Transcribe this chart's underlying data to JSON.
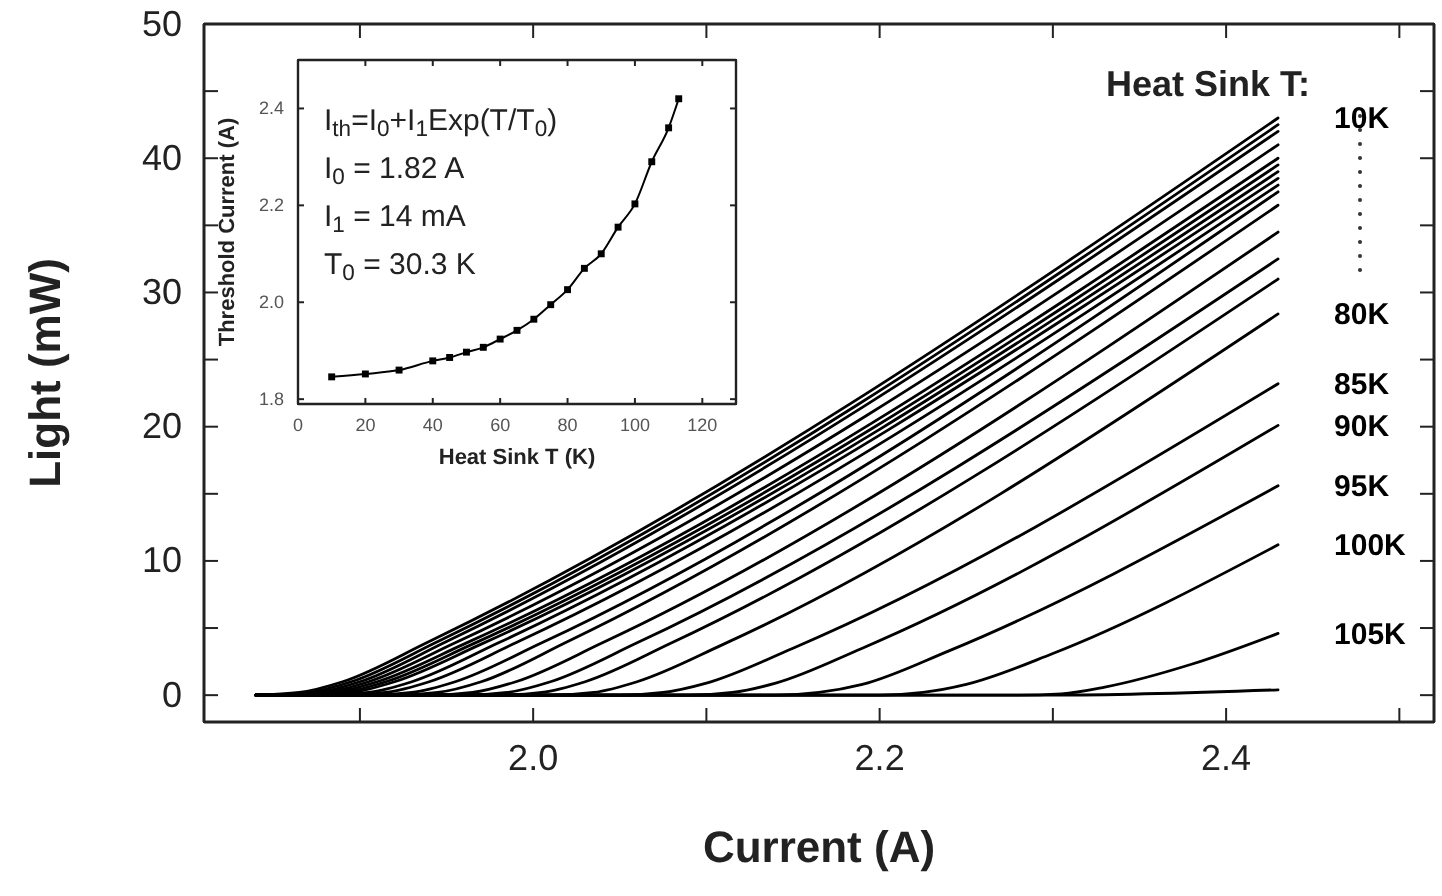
{
  "chart_data": [
    {
      "type": "line",
      "xlabel": "Current (A)",
      "ylabel": "Light (mW)",
      "xlim": [
        1.81,
        2.52
      ],
      "ylim": [
        -2,
        50
      ],
      "xticks": [
        {
          "value": 1.9,
          "label": null
        },
        {
          "value": 2,
          "label": "2.0"
        },
        {
          "value": 2.1,
          "label": null
        },
        {
          "value": 2.2,
          "label": "2.2"
        },
        {
          "value": 2.3,
          "label": null
        },
        {
          "value": 2.4,
          "label": "2.4"
        },
        {
          "value": 2.5,
          "label": null
        }
      ],
      "yticks": [
        0,
        {
          "value": 5,
          "label": null
        },
        10,
        {
          "value": 15,
          "label": null
        },
        20,
        {
          "value": 25,
          "label": null
        },
        30,
        {
          "value": 35,
          "label": null
        },
        40,
        {
          "value": 45,
          "label": null
        },
        50
      ],
      "annotations": [
        "Heat Sink T:"
      ],
      "marker": "none",
      "line_style": "solid",
      "grid": false,
      "legend": false,
      "series": [
        {
          "name": "10K",
          "color": "#000000",
          "x": [
            1.84,
            1.865,
            1.89,
            1.94,
            2.43
          ],
          "values": [
            0,
            0.2,
            1.0,
            4.0,
            43
          ]
        },
        {
          "color": "#000000",
          "x": [
            1.84,
            1.845,
            1.87,
            1.895,
            1.945,
            2.43
          ],
          "values": [
            0,
            0,
            0.2,
            1.0,
            4.0,
            42.5
          ]
        },
        {
          "color": "#000000",
          "x": [
            1.84,
            1.85,
            1.875,
            1.9,
            1.95,
            2.43
          ],
          "values": [
            0,
            0,
            0.2,
            1.0,
            4.0,
            42
          ]
        },
        {
          "color": "#000000",
          "x": [
            1.84,
            1.855,
            1.88,
            1.905,
            1.955,
            2.43
          ],
          "values": [
            0,
            0,
            0.2,
            1.0,
            3.9,
            41
          ]
        },
        {
          "color": "#000000",
          "x": [
            1.84,
            1.86,
            1.885,
            1.91,
            1.96,
            2.43
          ],
          "values": [
            0,
            0,
            0.2,
            1.0,
            3.8,
            40
          ]
        },
        {
          "color": "#000000",
          "x": [
            1.84,
            1.865,
            1.89,
            1.915,
            1.965,
            2.43
          ],
          "values": [
            0,
            0,
            0.2,
            1.0,
            3.8,
            39.5
          ]
        },
        {
          "color": "#000000",
          "x": [
            1.84,
            1.87,
            1.895,
            1.92,
            1.97,
            2.43
          ],
          "values": [
            0,
            0,
            0.2,
            1.0,
            3.8,
            39
          ]
        },
        {
          "color": "#000000",
          "x": [
            1.84,
            1.88,
            1.905,
            1.93,
            1.98,
            2.43
          ],
          "values": [
            0,
            0,
            0.2,
            1.0,
            3.9,
            38.5
          ]
        },
        {
          "color": "#000000",
          "x": [
            1.84,
            1.89,
            1.915,
            1.94,
            1.99,
            2.43
          ],
          "values": [
            0,
            0,
            0.2,
            1.0,
            3.9,
            38
          ]
        },
        {
          "color": "#000000",
          "x": [
            1.84,
            1.905,
            1.93,
            1.955,
            2.005,
            2.43
          ],
          "values": [
            0,
            0,
            0.2,
            1.0,
            3.9,
            37.5
          ]
        },
        {
          "color": "#000000",
          "x": [
            1.84,
            1.92,
            1.945,
            1.97,
            2.02,
            2.43
          ],
          "values": [
            0,
            0,
            0.2,
            1.0,
            4.0,
            36.5
          ]
        },
        {
          "color": "#000000",
          "x": [
            1.84,
            1.94,
            1.965,
            1.99,
            2.04,
            2.43
          ],
          "values": [
            0,
            0,
            0.2,
            1.0,
            3.9,
            34.5
          ]
        },
        {
          "color": "#000000",
          "x": [
            1.84,
            1.96,
            1.985,
            2.01,
            2.06,
            2.43
          ],
          "values": [
            0,
            0,
            0.2,
            1.0,
            3.9,
            32.5
          ]
        },
        {
          "color": "#000000",
          "x": [
            1.84,
            1.98,
            2.005,
            2.03,
            2.08,
            2.43
          ],
          "values": [
            0,
            0,
            0.2,
            1.0,
            3.9,
            31
          ]
        },
        {
          "name": "80K",
          "color": "#000000",
          "x": [
            1.84,
            2.01,
            2.035,
            2.06,
            2.11,
            2.43
          ],
          "values": [
            0,
            0,
            0.2,
            1.0,
            3.8,
            28.4
          ]
        },
        {
          "name": "85K",
          "color": "#000000",
          "x": [
            1.84,
            2.05,
            2.075,
            2.1,
            2.15,
            2.43
          ],
          "values": [
            0,
            0,
            0.2,
            0.9,
            3.5,
            23.2
          ]
        },
        {
          "name": "90K",
          "color": "#000000",
          "x": [
            1.84,
            2.09,
            2.115,
            2.14,
            2.19,
            2.43
          ],
          "values": [
            0,
            0,
            0.2,
            0.9,
            3.5,
            20.1
          ]
        },
        {
          "name": "95K",
          "color": "#000000",
          "x": [
            1.84,
            2.14,
            2.165,
            2.19,
            2.24,
            2.43
          ],
          "values": [
            0,
            0,
            0.2,
            0.8,
            3.3,
            15.6
          ]
        },
        {
          "name": "100K",
          "color": "#000000",
          "x": [
            1.84,
            2.2,
            2.225,
            2.25,
            2.3,
            2.43
          ],
          "values": [
            0,
            0,
            0.2,
            0.8,
            3.1,
            11.2
          ]
        },
        {
          "name": "105K",
          "color": "#000000",
          "x": [
            1.84,
            2.28,
            2.305,
            2.33,
            2.38,
            2.43
          ],
          "values": [
            0,
            0,
            0.1,
            0.6,
            2.3,
            4.6
          ]
        },
        {
          "color": "#000000",
          "x": [
            1.84,
            2.3,
            2.43
          ],
          "values": [
            0,
            0,
            0.4
          ]
        }
      ]
    },
    {
      "type": "line",
      "xlabel": "Heat Sink T (K)",
      "ylabel": "Threshold Current (A)",
      "xlim": [
        0,
        130
      ],
      "ylim": [
        1.79,
        2.5
      ],
      "xticks": [
        0,
        20,
        40,
        60,
        80,
        100,
        120
      ],
      "yticks": [
        1.8,
        {
          "value": 2,
          "label": "2.0"
        },
        2.2,
        2.4
      ],
      "annotations": [
        "I$_{th}$=I$_{0}$+I$_{1}$Exp(T/T$_{0}$)",
        "I$_{0}$ = 1.82 A",
        "I$_{1}$ = 14 mA",
        "T$_{0}$ = 30.3 K"
      ],
      "marker": "square",
      "line_style": "solid",
      "grid": false,
      "legend": false,
      "series": [
        {
          "color": "#000000",
          "x": [
            10,
            20,
            30,
            40,
            45,
            50,
            55,
            60,
            65,
            70,
            75,
            80,
            85,
            90,
            95,
            100,
            105,
            110,
            113
          ],
          "values": [
            1.846,
            1.852,
            1.86,
            1.879,
            1.886,
            1.897,
            1.907,
            1.924,
            1.942,
            1.965,
            1.995,
            2.026,
            2.07,
            2.1,
            2.155,
            2.203,
            2.29,
            2.36,
            2.42
          ]
        }
      ]
    }
  ]
}
